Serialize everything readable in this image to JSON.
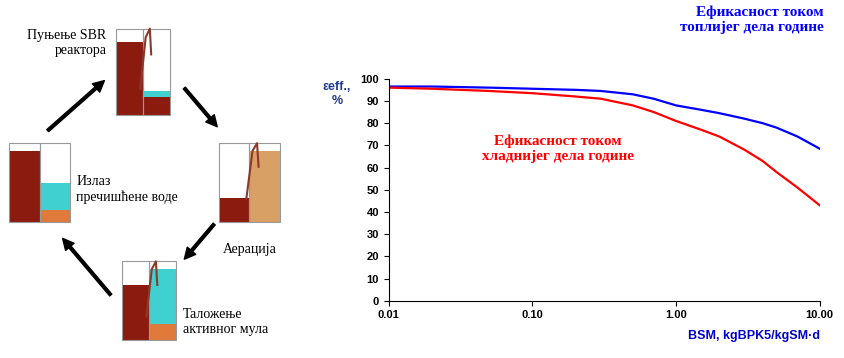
{
  "diagram": {
    "steps": [
      {
        "label": "Пуњење SBR\nреактора"
      },
      {
        "label": "Аерација"
      },
      {
        "label": "Таложење\nактивног мула"
      },
      {
        "label": "Излаз\nпречишћене воде"
      }
    ]
  },
  "chart_data": {
    "type": "line",
    "y_label": "εeff.,\n%",
    "x_label": "BSM, kgBPK5/kgSM·d",
    "log": "x",
    "grid": false,
    "x": [
      0.01,
      0.02,
      0.05,
      0.1,
      0.2,
      0.3,
      0.5,
      0.7,
      1.0,
      1.5,
      2,
      3,
      4,
      5,
      7,
      10
    ],
    "series": [
      {
        "name": "Ефикасност током\nтоплијег дела године",
        "color": "#0000FF",
        "values": [
          96.5,
          96.5,
          96,
          95.5,
          95,
          94.5,
          93,
          91,
          88,
          86,
          84.5,
          82,
          80,
          78,
          74,
          68.5
        ]
      },
      {
        "name": "Ефикасност током\nхладнијег дела године",
        "color": "#FF0000",
        "values": [
          96,
          95.5,
          94.5,
          93.5,
          92,
          91,
          88,
          85,
          81,
          77,
          74,
          68,
          63,
          58,
          51,
          43
        ]
      }
    ],
    "xlim": [
      0.01,
      10
    ],
    "ylim": [
      0,
      100
    ],
    "xticks": [
      0.01,
      {
        "value": 0.1,
        "label": "0.10"
      },
      {
        "value": 1,
        "label": "1.00"
      },
      {
        "value": 10,
        "label": "10.00"
      }
    ],
    "yticks": [
      0,
      10,
      20,
      30,
      40,
      50,
      60,
      70,
      80,
      90,
      100
    ]
  }
}
